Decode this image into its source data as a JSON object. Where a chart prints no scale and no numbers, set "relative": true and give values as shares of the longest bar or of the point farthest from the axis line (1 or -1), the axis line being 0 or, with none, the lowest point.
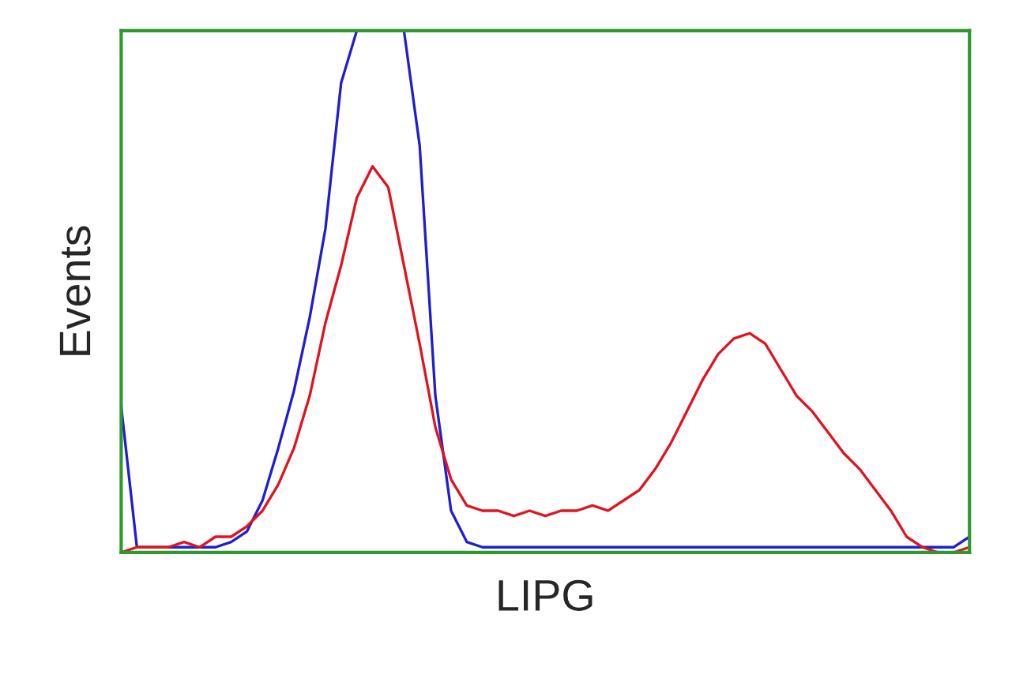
{
  "chart_data": {
    "type": "line",
    "relative": true,
    "xlabel": "LIPG",
    "ylabel": "Events",
    "tick_labels": false,
    "categories": [
      null,
      null,
      null,
      null,
      null,
      null,
      null,
      null,
      null,
      null,
      null,
      null,
      null,
      null,
      null,
      null,
      null,
      null,
      null,
      null,
      null,
      null,
      null,
      null,
      null,
      null,
      null,
      null,
      null,
      null,
      null,
      null,
      null,
      null,
      null,
      null,
      null,
      null,
      null,
      null,
      null,
      null,
      null,
      null,
      null,
      null,
      null,
      null,
      null,
      null,
      null,
      null,
      null,
      null,
      null
    ],
    "series": [
      {
        "color": "#1f1fd0",
        "values": [
          0.28,
          0.01,
          0.01,
          0.01,
          0.01,
          0.01,
          0.01,
          0.02,
          0.04,
          0.1,
          0.2,
          0.31,
          0.45,
          0.62,
          0.9,
          1.0,
          null,
          null,
          1.0,
          0.78,
          0.3,
          0.08,
          0.02,
          0.01,
          0.01,
          0.01,
          0.01,
          0.01,
          0.01,
          0.01,
          0.01,
          0.01,
          0.01,
          0.01,
          0.01,
          0.01,
          0.01,
          0.01,
          0.01,
          0.01,
          0.01,
          0.01,
          0.01,
          0.01,
          0.01,
          0.01,
          0.01,
          0.01,
          0.01,
          0.01,
          0.01,
          0.01,
          0.01,
          0.01,
          0.03
        ]
      },
      {
        "color": "#e0141e",
        "values": [
          0.0,
          0.01,
          0.01,
          0.01,
          0.02,
          0.01,
          0.03,
          0.03,
          0.05,
          0.08,
          0.13,
          0.2,
          0.3,
          0.44,
          0.55,
          0.68,
          0.74,
          0.7,
          0.55,
          0.4,
          0.24,
          0.14,
          0.09,
          0.08,
          0.08,
          0.07,
          0.08,
          0.07,
          0.08,
          0.08,
          0.09,
          0.08,
          0.1,
          0.12,
          0.16,
          0.21,
          0.27,
          0.33,
          0.38,
          0.41,
          0.42,
          0.4,
          0.35,
          0.3,
          0.27,
          0.23,
          0.19,
          0.16,
          0.12,
          0.08,
          0.03,
          0.01,
          0.0,
          0.0,
          0.01
        ]
      }
    ]
  }
}
